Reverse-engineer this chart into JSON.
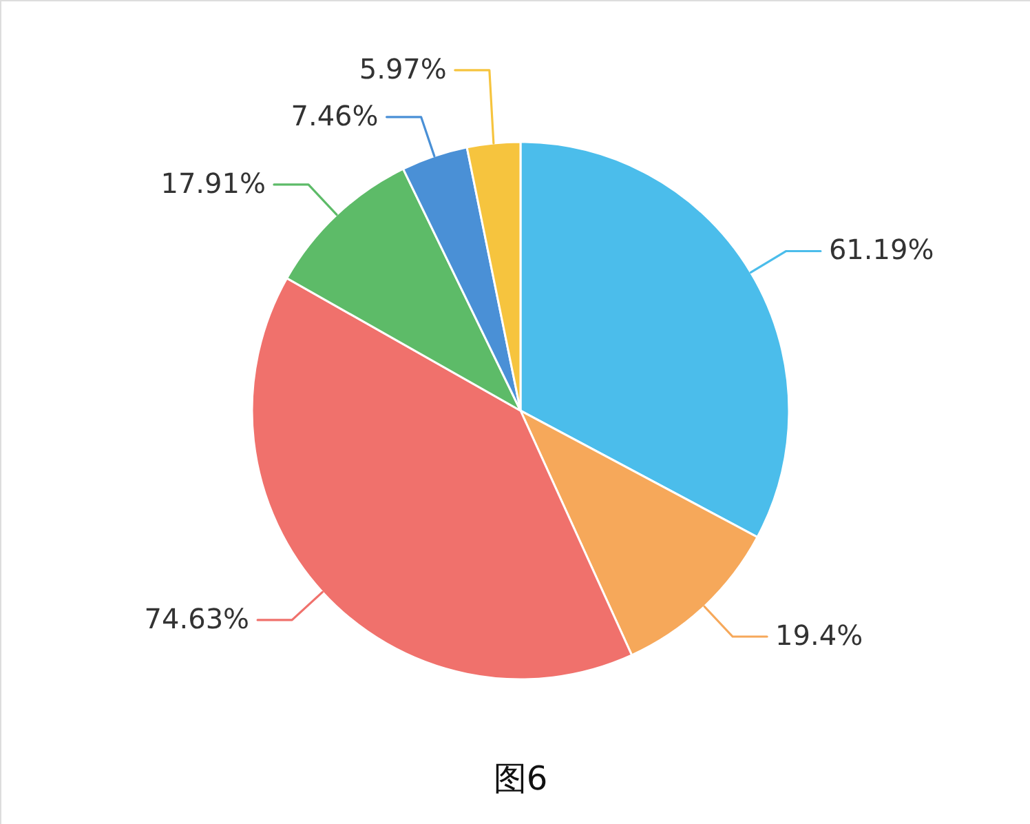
{
  "chart_data": {
    "type": "pie",
    "categories": [
      null,
      null,
      null,
      null,
      null,
      null
    ],
    "values": [
      61.19,
      19.4,
      74.63,
      17.91,
      7.46,
      5.97
    ],
    "colors": [
      "#4bbdeb",
      "#f6a85a",
      "#f0716c",
      "#5dbb68",
      "#4a90d6",
      "#f6c43e"
    ],
    "value_labels": [
      "61.19%",
      "19.4%",
      "74.63%",
      "17.91%",
      "7.46%",
      "5.97%"
    ],
    "annotations": [
      "图6"
    ]
  }
}
